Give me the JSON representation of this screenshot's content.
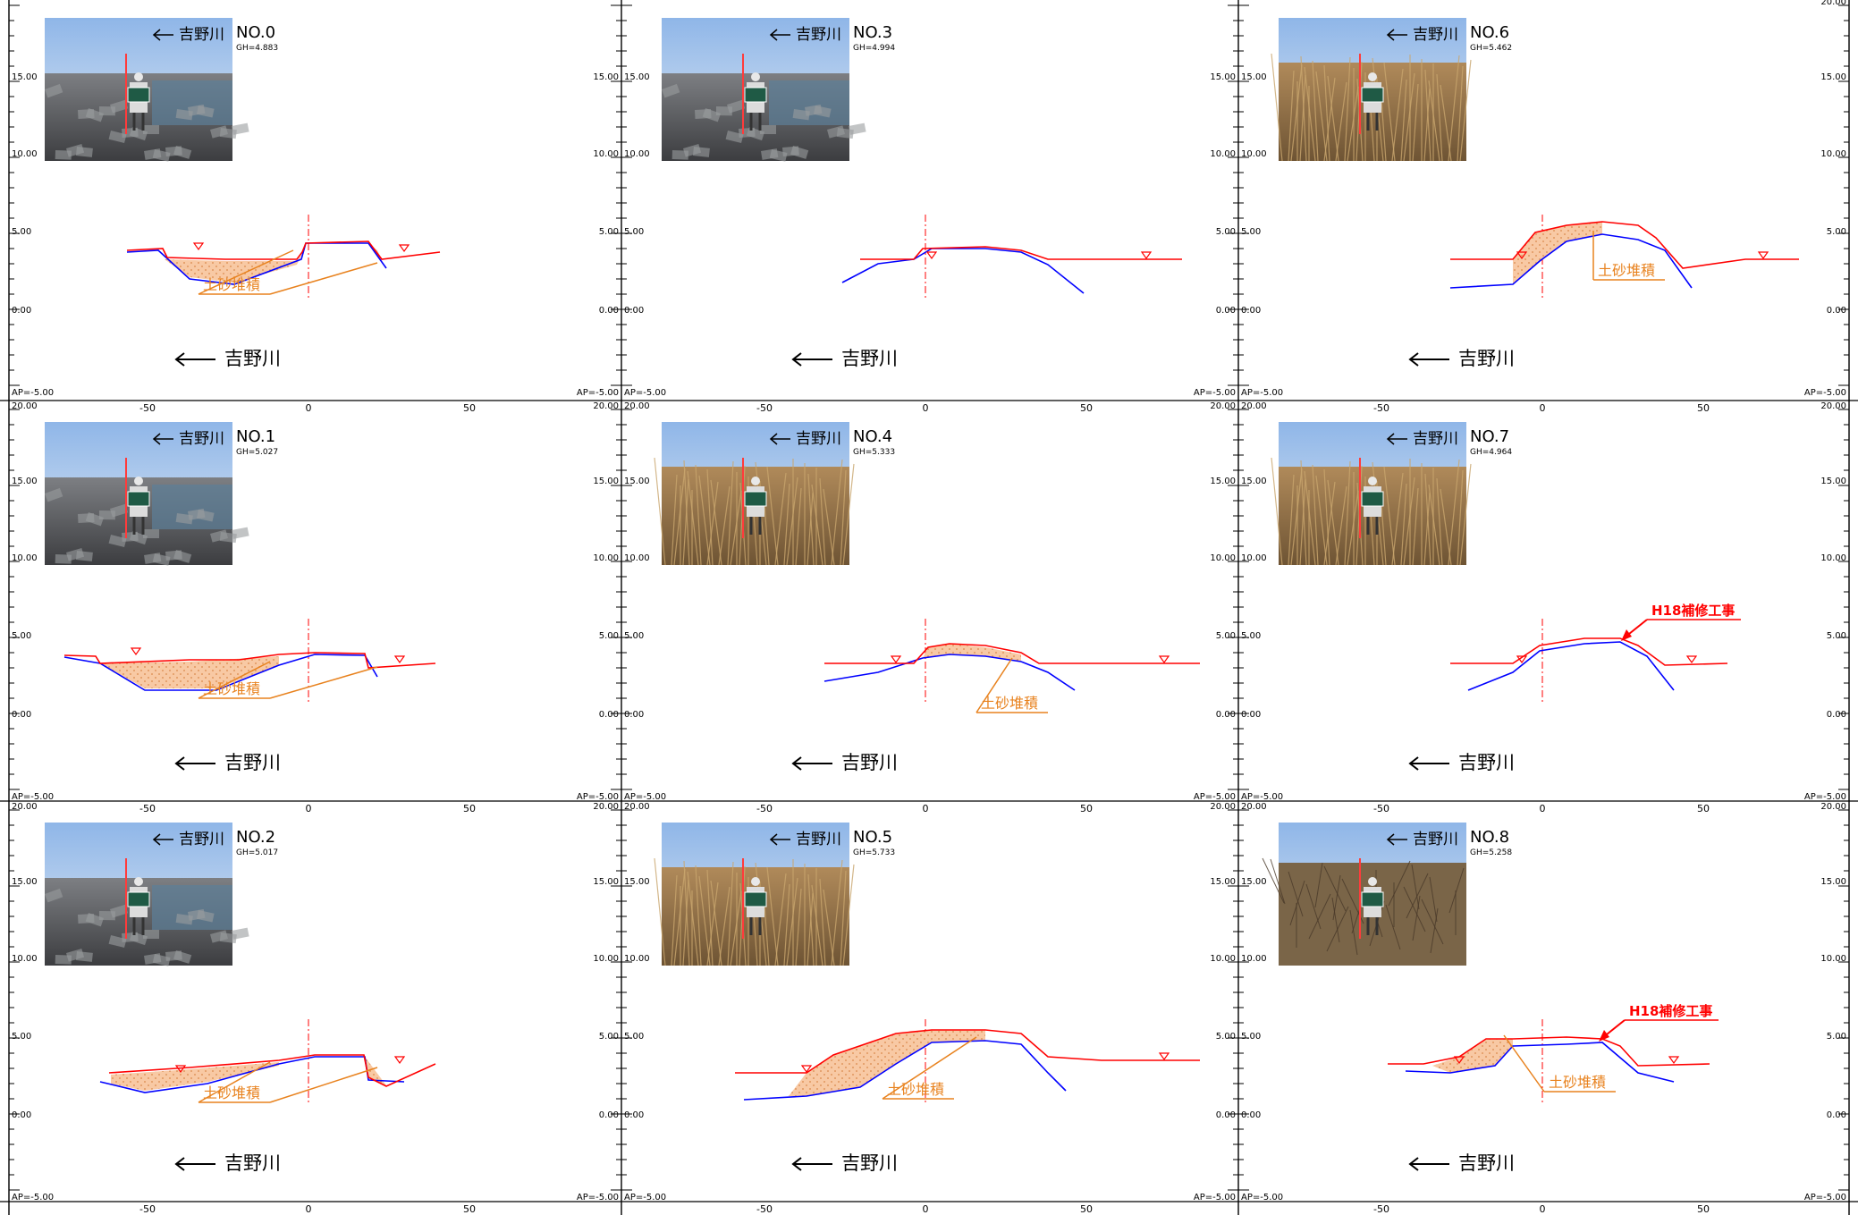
{
  "colors": {
    "accent_red": "#ff0000",
    "line_blue": "#0000ff",
    "annotation_orange": "#e8821e",
    "deposit_fill": "#f8c9a4",
    "grid": "#000000"
  },
  "scale": {
    "y_labels": [
      "20.00",
      "15.00",
      "10.00",
      "5.00",
      "0.00"
    ],
    "bottom_label": "AP=-5.00",
    "x_labels": [
      "-50",
      "0",
      "50"
    ]
  },
  "river_name": "吉野川",
  "deposit_label": "土砂堆積",
  "repair_label": "H18補修工事",
  "sections": [
    {
      "id": "NO.0",
      "gh": "GH=4.883",
      "photo": "riprap",
      "deposit_count": 2,
      "repair": false
    },
    {
      "id": "NO.1",
      "gh": "GH=5.027",
      "photo": "riprap",
      "deposit_count": 2,
      "repair": false
    },
    {
      "id": "NO.2",
      "gh": "GH=5.017",
      "photo": "riprap",
      "deposit_count": 2,
      "repair": false
    },
    {
      "id": "NO.3",
      "gh": "GH=4.994",
      "photo": "riprap",
      "deposit_count": 0,
      "repair": false
    },
    {
      "id": "NO.4",
      "gh": "GH=5.333",
      "photo": "reeds",
      "deposit_count": 1,
      "repair": false
    },
    {
      "id": "NO.5",
      "gh": "GH=5.733",
      "photo": "reeds",
      "deposit_count": 1,
      "repair": false
    },
    {
      "id": "NO.6",
      "gh": "GH=5.462",
      "photo": "reeds",
      "deposit_count": 1,
      "repair": false
    },
    {
      "id": "NO.7",
      "gh": "GH=4.964",
      "photo": "reeds",
      "deposit_count": 0,
      "repair": true
    },
    {
      "id": "NO.8",
      "gh": "GH=5.258",
      "photo": "bushes",
      "deposit_count": 1,
      "repair": true
    }
  ]
}
